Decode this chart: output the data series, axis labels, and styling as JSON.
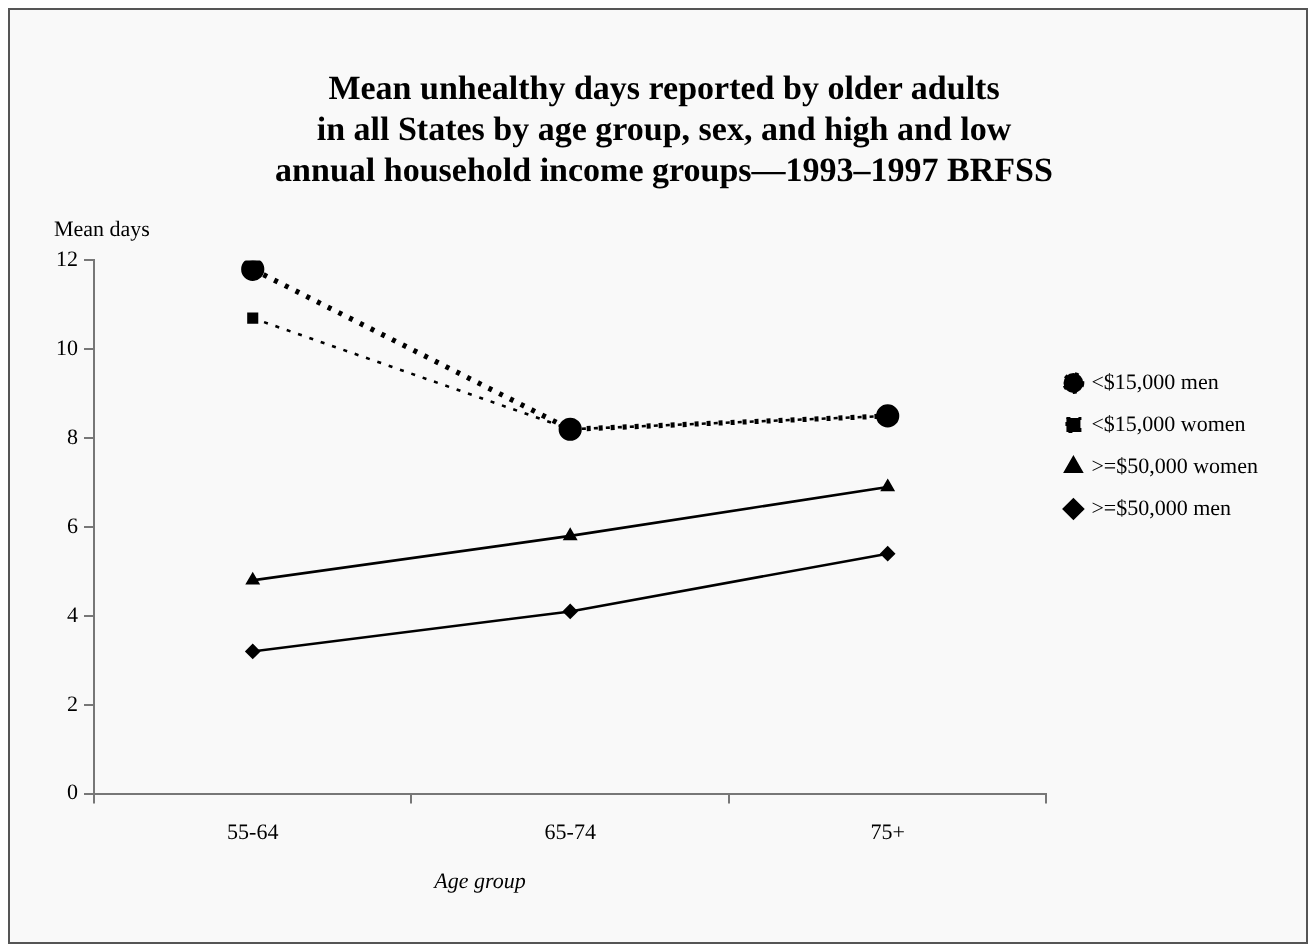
{
  "chart_data": {
    "type": "line",
    "title": "Mean unhealthy days reported by older adults\nin all States by age group, sex, and high and low\nannual household income groups—1993–1997 BRFSS",
    "ylabel": "Mean days",
    "xlabel": "Age group",
    "categories": [
      "55-64",
      "65-74",
      "75+"
    ],
    "series": [
      {
        "name": "<$15,000 men",
        "color": "#000000",
        "values": [
          11.8,
          8.2,
          8.5
        ],
        "marker": "circle",
        "line_style": "dotted"
      },
      {
        "name": "<$15,000 women",
        "color": "#000000",
        "values": [
          10.7,
          8.2,
          8.5
        ],
        "marker": "square",
        "line_style": "dotted"
      },
      {
        "name": ">=$50,000 women",
        "color": "#000000",
        "values": [
          4.8,
          5.8,
          6.9
        ],
        "marker": "triangle",
        "line_style": "solid"
      },
      {
        "name": ">=$50,000 men",
        "color": "#000000",
        "values": [
          3.2,
          4.1,
          5.4
        ],
        "marker": "diamond",
        "line_style": "solid"
      }
    ],
    "ylim": [
      0,
      12
    ],
    "yticks": [
      0,
      2,
      4,
      6,
      8,
      10,
      12
    ],
    "grid": false,
    "legend": "right"
  }
}
